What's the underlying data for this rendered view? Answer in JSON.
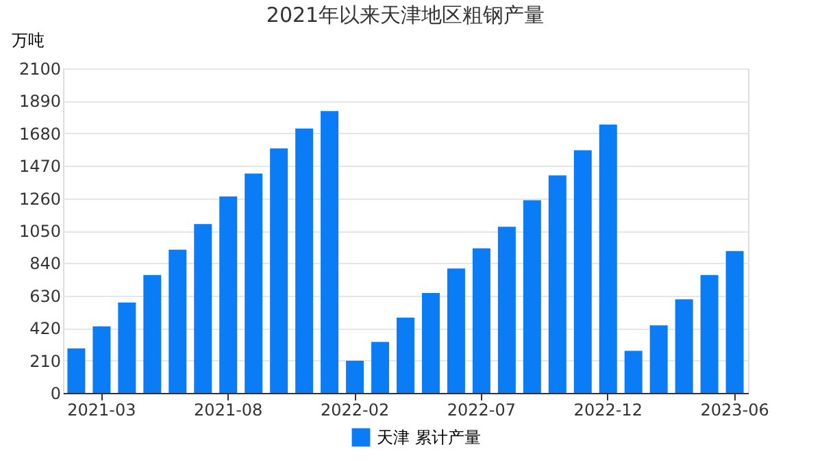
{
  "chart_data": {
    "type": "bar",
    "title": "2021年以来天津地区粗钢产量",
    "ylabel": "万吨",
    "categories": [
      null,
      "2021-03",
      null,
      null,
      null,
      null,
      "2021-08",
      null,
      null,
      null,
      null,
      "2022-02",
      null,
      null,
      null,
      null,
      "2022-07",
      null,
      null,
      null,
      null,
      "2022-12",
      null,
      null,
      null,
      null,
      "2023-06"
    ],
    "series": [
      {
        "name": "天津 累计产量",
        "color": "#0a7cf5",
        "values": [
          288,
          431,
          585,
          763,
          927,
          1093,
          1271,
          1420,
          1583,
          1711,
          1824,
          208,
          330,
          487,
          647,
          805,
          936,
          1075,
          1247,
          1408,
          1571,
          1737,
          273,
          437,
          606,
          763,
          918
        ]
      }
    ],
    "ylim": [
      0,
      2100
    ],
    "yticks": [
      0,
      210,
      420,
      630,
      840,
      1050,
      1260,
      1470,
      1680,
      1890,
      2100
    ],
    "grid": "y",
    "legend": "bottom"
  }
}
